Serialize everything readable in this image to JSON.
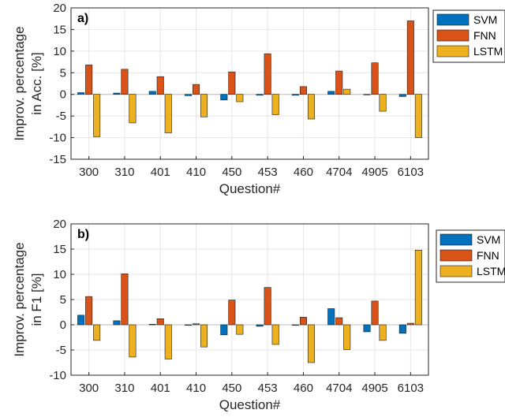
{
  "chart_data": [
    {
      "type": "bar",
      "panel_label": "a)",
      "categories": [
        "300",
        "310",
        "401",
        "410",
        "450",
        "453",
        "460",
        "4704",
        "4905",
        "6103"
      ],
      "xlabel": "Question#",
      "ylabel_lines": [
        "Improv. percentage",
        "in Acc. [%]"
      ],
      "ylim": [
        -15,
        20
      ],
      "yticks": [
        20,
        15,
        10,
        5,
        0,
        -5,
        -10,
        -15
      ],
      "grid": true,
      "legend_position": "outside-right-top",
      "series": [
        {
          "name": "SVM",
          "color": "#0072BD",
          "values": [
            0.4,
            0.3,
            0.7,
            -0.3,
            -1.3,
            -0.2,
            -0.2,
            0.7,
            0.0,
            -0.5
          ]
        },
        {
          "name": "FNN",
          "color": "#D95319",
          "values": [
            6.8,
            5.8,
            4.1,
            2.3,
            5.2,
            9.4,
            1.8,
            5.4,
            7.3,
            17.0
          ]
        },
        {
          "name": "LSTM",
          "color": "#EDB120",
          "values": [
            -9.8,
            -6.6,
            -8.9,
            -5.2,
            -1.7,
            -4.7,
            -5.7,
            1.2,
            -3.9,
            -10.0
          ]
        }
      ]
    },
    {
      "type": "bar",
      "panel_label": "b)",
      "categories": [
        "300",
        "310",
        "401",
        "410",
        "450",
        "453",
        "460",
        "4704",
        "4905",
        "6103"
      ],
      "xlabel": "Question#",
      "ylabel_lines": [
        "Improv. percentage",
        "in F1 [%]"
      ],
      "ylim": [
        -10,
        20
      ],
      "yticks": [
        20,
        15,
        10,
        5,
        0,
        -5,
        -10
      ],
      "grid": true,
      "legend_position": "outside-right-top",
      "series": [
        {
          "name": "SVM",
          "color": "#0072BD",
          "values": [
            1.9,
            0.8,
            0.1,
            -0.1,
            -2.0,
            -0.3,
            0.0,
            3.2,
            -1.4,
            -1.7
          ]
        },
        {
          "name": "FNN",
          "color": "#D95319",
          "values": [
            5.6,
            10.1,
            1.2,
            0.2,
            4.9,
            7.4,
            1.5,
            1.4,
            4.7,
            0.3
          ]
        },
        {
          "name": "LSTM",
          "color": "#EDB120",
          "values": [
            -3.1,
            -6.4,
            -6.8,
            -4.4,
            -1.9,
            -3.9,
            -7.5,
            -4.9,
            -3.1,
            14.8
          ]
        }
      ]
    }
  ]
}
